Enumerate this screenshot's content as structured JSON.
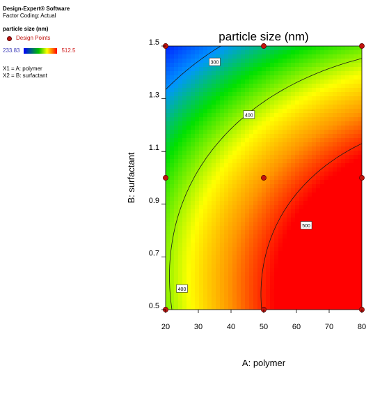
{
  "sidebar": {
    "software": "Design-Expert® Software",
    "coding": "Factor Coding: Actual",
    "response_title": "particle size (nm)",
    "design_points_label": "Design Points",
    "scale_min": "233.83",
    "scale_max": "512.5",
    "x1_label": "X1 = A: polymer",
    "x2_label": "X2 = B: surfactant"
  },
  "colors": {
    "design_point": "#c0140e",
    "low": "#0000ff",
    "mid": "#00c000",
    "high": "#ff0000"
  },
  "chart_data": {
    "type": "heatmap",
    "title": "particle size (nm)",
    "xlabel": "A: polymer",
    "ylabel": "B: surfactant",
    "xlim": [
      20,
      80
    ],
    "ylim": [
      0.5,
      1.5
    ],
    "x_ticks": [
      "20",
      "30",
      "40",
      "50",
      "60",
      "70",
      "80"
    ],
    "y_ticks": [
      "0.5",
      "0.7",
      "0.9",
      "1.1",
      "1.3",
      "1.5"
    ],
    "value_range": [
      233.83,
      512.5
    ],
    "contour_labels": [
      {
        "text": "300",
        "x": 35,
        "y": 1.44
      },
      {
        "text": "400",
        "x": 45.5,
        "y": 1.24
      },
      {
        "text": "400",
        "x": 25,
        "y": 0.58
      },
      {
        "text": "500",
        "x": 63,
        "y": 0.82
      }
    ],
    "design_points": [
      {
        "x": 20,
        "y": 0.5
      },
      {
        "x": 50,
        "y": 0.5
      },
      {
        "x": 80,
        "y": 0.5
      },
      {
        "x": 20,
        "y": 1.0
      },
      {
        "x": 50,
        "y": 1.0
      },
      {
        "x": 80,
        "y": 1.0
      },
      {
        "x": 20,
        "y": 1.5
      },
      {
        "x": 50,
        "y": 1.5
      },
      {
        "x": 80,
        "y": 1.5
      }
    ],
    "grid": false,
    "legend": "left panel"
  }
}
